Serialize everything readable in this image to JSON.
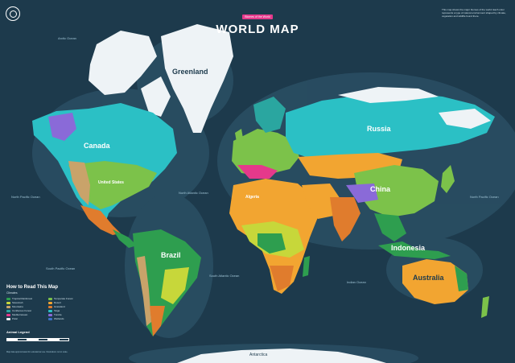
{
  "header": {
    "subtitle": "Biomes of the World",
    "title": "WORLD MAP",
    "about": "This map shows the major biomes of the world. Each color represents a type of natural environment shaped by climate, vegetation and wildlife found there."
  },
  "regions": {
    "greenland": "Greenland",
    "canada": "Canada",
    "usa": "United States",
    "brazil": "Brazil",
    "algeria": "Algeria",
    "russia": "Russia",
    "china": "China",
    "indonesia": "Indonesia",
    "australia": "Australia",
    "antarctica": "Antarctica"
  },
  "oceans": {
    "arctic": "Arctic Ocean",
    "north_pacific": "North Pacific Ocean",
    "north_atlantic": "North Atlantic Ocean",
    "south_atlantic": "South Atlantic Ocean",
    "south_pacific": "South Pacific Ocean",
    "indian": "Indian Ocean",
    "north_pacific_east": "North Pacific Ocean"
  },
  "legend": {
    "title": "How to Read This Map",
    "subtitle": "Climates",
    "items": [
      {
        "label": "Tropical Rainforest",
        "color": "#2e9e4f"
      },
      {
        "label": "Temperate Forest",
        "color": "#7cc24a"
      },
      {
        "label": "Savannah",
        "color": "#c7d73a"
      },
      {
        "label": "Desert",
        "color": "#f2a531"
      },
      {
        "label": "Mountains",
        "color": "#c9a36a"
      },
      {
        "label": "Grassland",
        "color": "#e07c2d"
      },
      {
        "label": "Coniferous Forest",
        "color": "#2aa6a0"
      },
      {
        "label": "Taiga",
        "color": "#2bc0c5"
      },
      {
        "label": "Mediterranean",
        "color": "#e5398b"
      },
      {
        "label": "Tundra",
        "color": "#8a6ad8"
      },
      {
        "label": "Polar",
        "color": "#eef3f6"
      },
      {
        "label": "Wetlands",
        "color": "#3c72c7"
      }
    ],
    "scale_title": "Animal Legend",
    "scale_colors": [
      "#ffffff",
      "#1d3a4c",
      "#ffffff",
      "#1d3a4c",
      "#ffffff",
      "#1d3a4c"
    ]
  },
  "credit": "Map data approximated for educational use. Illustrations not to scale.",
  "palette": {
    "ocean": "#1d3a4c",
    "ocean_light": "#2a4e63",
    "polar": "#eef3f6",
    "taiga": "#2bc0c5",
    "desert": "#f2a531",
    "grassland": "#e07c2d",
    "rainforest": "#2e9e4f",
    "temperate": "#7cc24a",
    "savannah": "#c7d73a",
    "mountain": "#c9a36a",
    "med": "#e5398b",
    "tundra": "#8a6ad8",
    "wetland": "#3c72c7"
  }
}
